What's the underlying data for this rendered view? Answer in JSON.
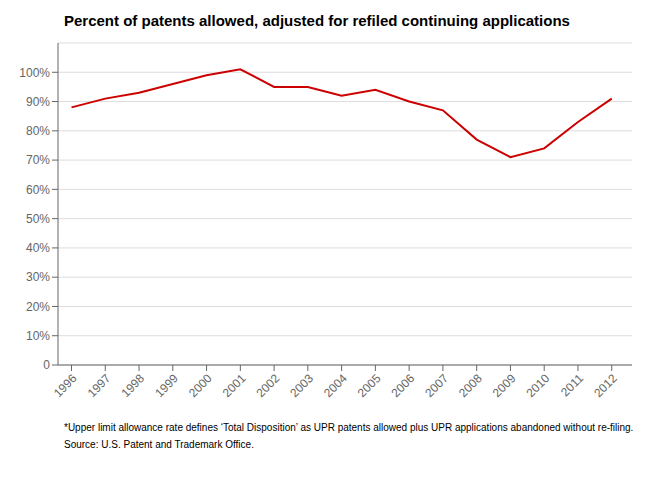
{
  "chart_data": {
    "type": "line",
    "title": "Percent of patents allowed, adjusted for refiled continuing applications",
    "x": [
      1996,
      1997,
      1998,
      1999,
      2000,
      2001,
      2002,
      2003,
      2004,
      2005,
      2006,
      2007,
      2008,
      2009,
      2010,
      2011,
      2012
    ],
    "values": [
      88,
      91,
      93,
      96,
      99,
      101,
      95,
      95,
      92,
      94,
      90,
      87,
      77,
      71,
      74,
      83,
      91
    ],
    "color": "#cc0000",
    "xlim": [
      1995.6,
      2012.6
    ],
    "xticks": [
      1996,
      1997,
      1998,
      1999,
      2000,
      2001,
      2002,
      2003,
      2004,
      2005,
      2006,
      2007,
      2008,
      2009,
      2010,
      2011,
      2012
    ],
    "ylim": [
      0,
      110
    ],
    "yticks": [
      0,
      {
        "value": 10,
        "label": "10%"
      },
      {
        "value": 20,
        "label": "20%"
      },
      {
        "value": 30,
        "label": "30%"
      },
      {
        "value": 40,
        "label": "40%"
      },
      {
        "value": 50,
        "label": "50%"
      },
      {
        "value": 60,
        "label": "60%"
      },
      {
        "value": 70,
        "label": "70%"
      },
      {
        "value": 80,
        "label": "80%"
      },
      {
        "value": 90,
        "label": "90%"
      },
      {
        "value": 100,
        "label": "100%"
      }
    ],
    "grid": true,
    "annotations": [
      "*Upper limit allowance rate defines ‘Total Disposition’ as UPR patents allowed plus UPR applications abandoned without re-filing.",
      "Source: U.S. Patent and Trademark Office."
    ]
  }
}
